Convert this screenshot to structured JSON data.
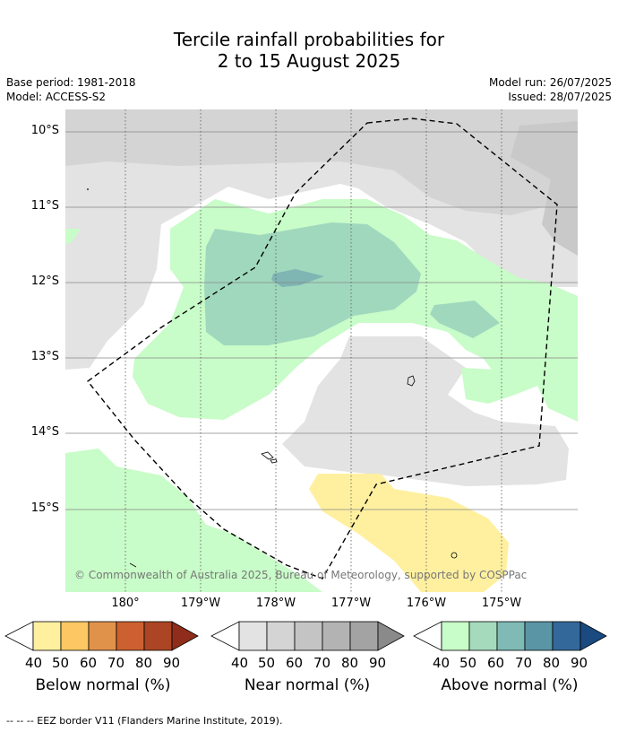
{
  "title_line1": "Tercile rainfall probabilities for",
  "title_line2": "2 to 15 August 2025",
  "meta_left": [
    "Base period: 1981-2018",
    "Model: ACCESS-S2"
  ],
  "meta_right": [
    "Model run: 26/07/2025",
    "Issued: 28/07/2025"
  ],
  "lat_labels": [
    "10°S",
    "11°S",
    "12°S",
    "13°S",
    "14°S",
    "15°S"
  ],
  "lon_labels": [
    "180°",
    "179°W",
    "178°W",
    "177°W",
    "176°W",
    "175°W"
  ],
  "copyright": "© Commonwealth of Australia 2025, Bureau of Meteorology, supported by COSPPac",
  "legends": [
    {
      "title": "Below normal (%)",
      "ticks": [
        "40",
        "50",
        "60",
        "70",
        "80",
        "90"
      ],
      "colors": [
        "#ffffff",
        "#fff0a0",
        "#fdc863",
        "#e0924a",
        "#cc6030",
        "#ab4523",
        "#8f2d1a"
      ]
    },
    {
      "title": "Near normal (%)",
      "ticks": [
        "40",
        "50",
        "60",
        "70",
        "80",
        "90"
      ],
      "colors": [
        "#ffffff",
        "#e3e3e3",
        "#d4d4d4",
        "#c4c4c4",
        "#b3b3b3",
        "#a3a3a3",
        "#8a8a8a"
      ]
    },
    {
      "title": "Above normal (%)",
      "ticks": [
        "40",
        "50",
        "60",
        "70",
        "80",
        "90"
      ],
      "colors": [
        "#ffffff",
        "#c8fcc8",
        "#a6dabd",
        "#7fbab5",
        "#5a95a5",
        "#33689a",
        "#1a4a80"
      ]
    }
  ],
  "footer": "--  --  -- EEZ border V11 (Flanders Marine Institute, 2019)."
}
